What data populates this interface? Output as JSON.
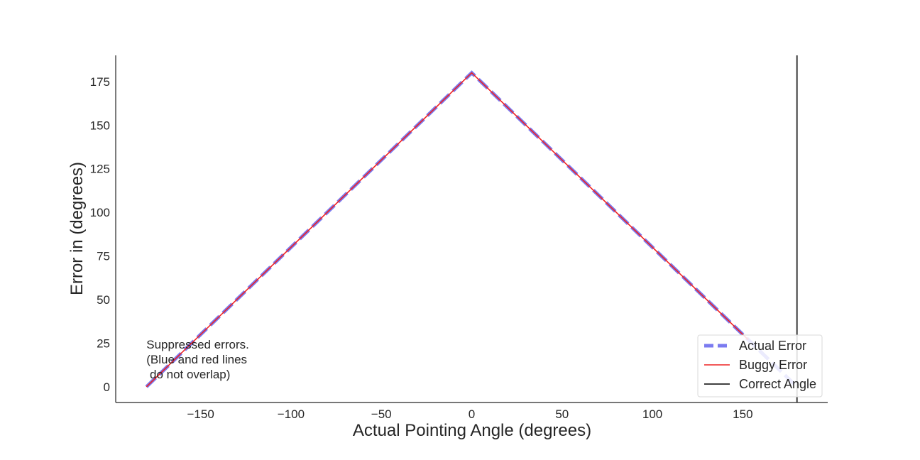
{
  "chart_data": {
    "type": "line",
    "title": "",
    "xlabel": "Actual Pointing Angle (degrees)",
    "ylabel": "Error in (degrees)",
    "xlim": [
      -197,
      197
    ],
    "ylim": [
      -9,
      190
    ],
    "xticks": [
      -150,
      -100,
      -50,
      0,
      50,
      100,
      150
    ],
    "xtick_labels": [
      "−150",
      "−100",
      "−50",
      "0",
      "50",
      "100",
      "150"
    ],
    "yticks": [
      0,
      25,
      50,
      75,
      100,
      125,
      150,
      175
    ],
    "ytick_labels": [
      "0",
      "25",
      "50",
      "75",
      "100",
      "125",
      "150",
      "175"
    ],
    "grid": false,
    "legend_position": "lower-right",
    "series": [
      {
        "name": "Actual Error",
        "style": "dashed",
        "color": "#7b7bf0",
        "x": [
          -180,
          0,
          180
        ],
        "y": [
          0,
          180,
          0
        ]
      },
      {
        "name": "Buggy Error",
        "style": "solid",
        "color": "#ee2222",
        "x": [
          -180,
          0,
          153
        ],
        "y": [
          0,
          180,
          27
        ]
      }
    ],
    "vlines": [
      {
        "name": "Correct Angle",
        "x": 180,
        "color": "#262626"
      }
    ],
    "annotations": [
      {
        "lines": [
          "Suppressed errors.",
          "(Blue and red lines",
          " do not overlap)"
        ],
        "x": -180,
        "y": 22
      }
    ]
  }
}
